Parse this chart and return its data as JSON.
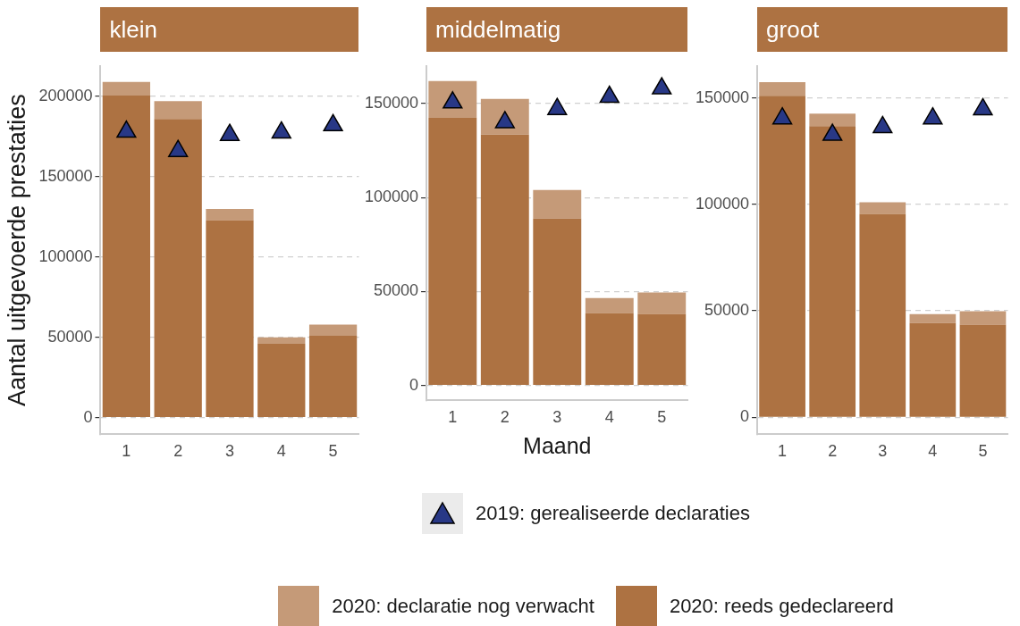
{
  "chart_data": [
    {
      "type": "bar",
      "title": "klein",
      "ylabel": "Aantal uitgevoerde prestaties",
      "categories": [
        "1",
        "2",
        "3",
        "4",
        "5"
      ],
      "stacked": true,
      "grid": "y",
      "legend": "bottom",
      "ylim": [
        -10400,
        219000
      ],
      "yticks": [
        0,
        50000,
        100000,
        150000,
        200000
      ],
      "series": [
        {
          "name": "2020: reeds gedeclareerd",
          "color": "#ad7242",
          "values": [
            200500,
            186000,
            123000,
            46000,
            51000
          ]
        },
        {
          "name": "2020: declaratie nog verwacht",
          "color": "#c59a78",
          "values": [
            8500,
            11000,
            7000,
            4000,
            7000
          ]
        },
        {
          "name": "2019: gerealiseerde declaraties",
          "type": "scatter",
          "marker": "triangle",
          "color": "#283886",
          "x": [
            "1",
            "2",
            "3",
            "4",
            "5"
          ],
          "values": [
            178000,
            166000,
            176000,
            177500,
            182000
          ]
        }
      ]
    },
    {
      "type": "bar",
      "title": "middelmatig",
      "xlabel": "Maand",
      "categories": [
        "1",
        "2",
        "3",
        "4",
        "5"
      ],
      "stacked": true,
      "grid": "y",
      "ylim": [
        -8000,
        170000
      ],
      "yticks": [
        0,
        50000,
        100000,
        150000
      ],
      "series": [
        {
          "color": "#ad7242",
          "values": [
            142400,
            133400,
            88800,
            38500,
            38000
          ]
        },
        {
          "color": "#c59a78",
          "values": [
            19600,
            19100,
            15200,
            8000,
            11400
          ]
        },
        {
          "type": "scatter",
          "marker": "triangle",
          "color": "#283886",
          "x": [
            "1",
            "2",
            "3",
            "4",
            "5"
          ],
          "values": [
            150500,
            140000,
            147000,
            153500,
            158000
          ]
        }
      ]
    },
    {
      "type": "bar",
      "title": "groot",
      "categories": [
        "1",
        "2",
        "3",
        "4",
        "5"
      ],
      "stacked": true,
      "grid": "y",
      "ylim": [
        -8000,
        165000
      ],
      "yticks": [
        0,
        50000,
        100000,
        150000
      ],
      "series": [
        {
          "color": "#ad7242",
          "values": [
            151000,
            136700,
            95500,
            44300,
            43500
          ]
        },
        {
          "color": "#c59a78",
          "values": [
            6400,
            5900,
            5500,
            4200,
            6300
          ]
        },
        {
          "type": "scatter",
          "marker": "triangle",
          "color": "#283886",
          "x": [
            "1",
            "2",
            "3",
            "4",
            "5"
          ],
          "values": [
            140300,
            132600,
            136200,
            140300,
            144600
          ]
        }
      ]
    }
  ]
}
